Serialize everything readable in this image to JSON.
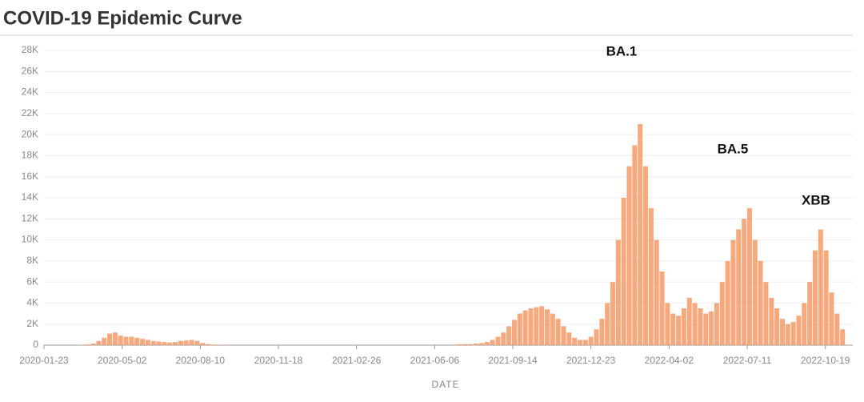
{
  "chart_data": {
    "type": "bar",
    "title": "COVID-19 Epidemic Curve",
    "x_label": "DATE",
    "annotations": [
      "BA.1",
      "BA.5",
      "XBB"
    ],
    "color": "#f39a66",
    "grid": true,
    "xlim": [
      "2020-01-23",
      "2022-11-17"
    ],
    "xticks": [
      "2020-01-23",
      "2020-05-02",
      "2020-08-10",
      "2020-11-18",
      "2021-02-26",
      "2021-06-06",
      "2021-09-14",
      "2021-12-23",
      "2022-04-02",
      "2022-07-11",
      "2022-10-19"
    ],
    "ylim": [
      0,
      28000
    ],
    "yticks": [
      0,
      {
        "value": 2000,
        "label": "2K"
      },
      {
        "value": 4000,
        "label": "4K"
      },
      {
        "value": 6000,
        "label": "6K"
      },
      {
        "value": 8000,
        "label": "8K"
      },
      {
        "value": 10000,
        "label": "10K"
      },
      {
        "value": 12000,
        "label": "12K"
      },
      {
        "value": 14000,
        "label": "14K"
      },
      {
        "value": 16000,
        "label": "16K"
      },
      {
        "value": 18000,
        "label": "18K"
      },
      {
        "value": 20000,
        "label": "20K"
      },
      {
        "value": 22000,
        "label": "22K"
      },
      {
        "value": 24000,
        "label": "24K"
      },
      {
        "value": 26000,
        "label": "26K"
      },
      {
        "value": 28000,
        "label": "28K"
      }
    ],
    "x": [
      "2020-01-23",
      "2020-01-30",
      "2020-02-06",
      "2020-02-13",
      "2020-02-20",
      "2020-02-27",
      "2020-03-05",
      "2020-03-12",
      "2020-03-19",
      "2020-03-26",
      "2020-04-02",
      "2020-04-09",
      "2020-04-16",
      "2020-04-23",
      "2020-04-30",
      "2020-05-07",
      "2020-05-14",
      "2020-05-21",
      "2020-05-28",
      "2020-06-04",
      "2020-06-11",
      "2020-06-18",
      "2020-06-25",
      "2020-07-02",
      "2020-07-09",
      "2020-07-16",
      "2020-07-23",
      "2020-07-30",
      "2020-08-06",
      "2020-08-13",
      "2020-08-20",
      "2020-08-27",
      "2020-09-03",
      "2020-09-10",
      "2020-09-17",
      "2020-09-24",
      "2020-10-01",
      "2020-10-08",
      "2020-10-15",
      "2020-10-22",
      "2020-10-29",
      "2020-11-05",
      "2020-11-12",
      "2020-11-19",
      "2020-11-26",
      "2020-12-03",
      "2020-12-10",
      "2020-12-17",
      "2020-12-24",
      "2020-12-31",
      "2021-01-07",
      "2021-01-14",
      "2021-01-21",
      "2021-01-28",
      "2021-02-04",
      "2021-02-11",
      "2021-02-18",
      "2021-02-25",
      "2021-03-04",
      "2021-03-11",
      "2021-03-18",
      "2021-03-25",
      "2021-04-01",
      "2021-04-08",
      "2021-04-15",
      "2021-04-22",
      "2021-04-29",
      "2021-05-06",
      "2021-05-13",
      "2021-05-20",
      "2021-05-27",
      "2021-06-03",
      "2021-06-10",
      "2021-06-17",
      "2021-06-24",
      "2021-07-01",
      "2021-07-08",
      "2021-07-15",
      "2021-07-22",
      "2021-07-29",
      "2021-08-05",
      "2021-08-12",
      "2021-08-19",
      "2021-08-26",
      "2021-09-02",
      "2021-09-09",
      "2021-09-16",
      "2021-09-23",
      "2021-09-30",
      "2021-10-07",
      "2021-10-14",
      "2021-10-21",
      "2021-10-28",
      "2021-11-04",
      "2021-11-11",
      "2021-11-18",
      "2021-11-25",
      "2021-12-02",
      "2021-12-09",
      "2021-12-16",
      "2021-12-23",
      "2021-12-30",
      "2022-01-06",
      "2022-01-13",
      "2022-01-20",
      "2022-01-27",
      "2022-02-03",
      "2022-02-10",
      "2022-02-17",
      "2022-02-24",
      "2022-03-03",
      "2022-03-10",
      "2022-03-17",
      "2022-03-24",
      "2022-03-31",
      "2022-04-07",
      "2022-04-14",
      "2022-04-21",
      "2022-04-28",
      "2022-05-05",
      "2022-05-12",
      "2022-05-19",
      "2022-05-26",
      "2022-06-02",
      "2022-06-09",
      "2022-06-16",
      "2022-06-23",
      "2022-06-30",
      "2022-07-07",
      "2022-07-14",
      "2022-07-21",
      "2022-07-28",
      "2022-08-04",
      "2022-08-11",
      "2022-08-18",
      "2022-08-25",
      "2022-09-01",
      "2022-09-08",
      "2022-09-15",
      "2022-09-22",
      "2022-09-29",
      "2022-10-06",
      "2022-10-13",
      "2022-10-20",
      "2022-10-27",
      "2022-11-03",
      "2022-11-10"
    ],
    "values": [
      0,
      0,
      0,
      0,
      0,
      0,
      0,
      20,
      60,
      150,
      400,
      700,
      1100,
      1200,
      900,
      800,
      800,
      700,
      600,
      500,
      400,
      350,
      300,
      250,
      300,
      400,
      450,
      500,
      400,
      200,
      100,
      50,
      30,
      20,
      0,
      0,
      0,
      0,
      0,
      0,
      0,
      0,
      0,
      0,
      0,
      0,
      0,
      0,
      0,
      0,
      0,
      0,
      0,
      0,
      0,
      0,
      0,
      0,
      0,
      0,
      0,
      0,
      0,
      0,
      0,
      0,
      0,
      0,
      0,
      0,
      0,
      0,
      0,
      0,
      0,
      50,
      80,
      100,
      100,
      150,
      200,
      300,
      500,
      800,
      1200,
      1800,
      2400,
      3000,
      3300,
      3500,
      3600,
      3700,
      3400,
      3000,
      2500,
      1800,
      1200,
      700,
      500,
      500,
      800,
      1500,
      2500,
      4000,
      6000,
      10000,
      14000,
      17000,
      19000,
      21000,
      17000,
      13000,
      10000,
      7000,
      4000,
      3000,
      2800,
      3500,
      4500,
      4000,
      3500,
      3000,
      3200,
      4000,
      6000,
      8000,
      10000,
      11000,
      12000,
      13000,
      10000,
      8000,
      6000,
      4500,
      3500,
      2500,
      2000,
      2200,
      2800,
      4000,
      6000,
      9000,
      11000,
      9000,
      5000,
      3000,
      1500
    ]
  }
}
